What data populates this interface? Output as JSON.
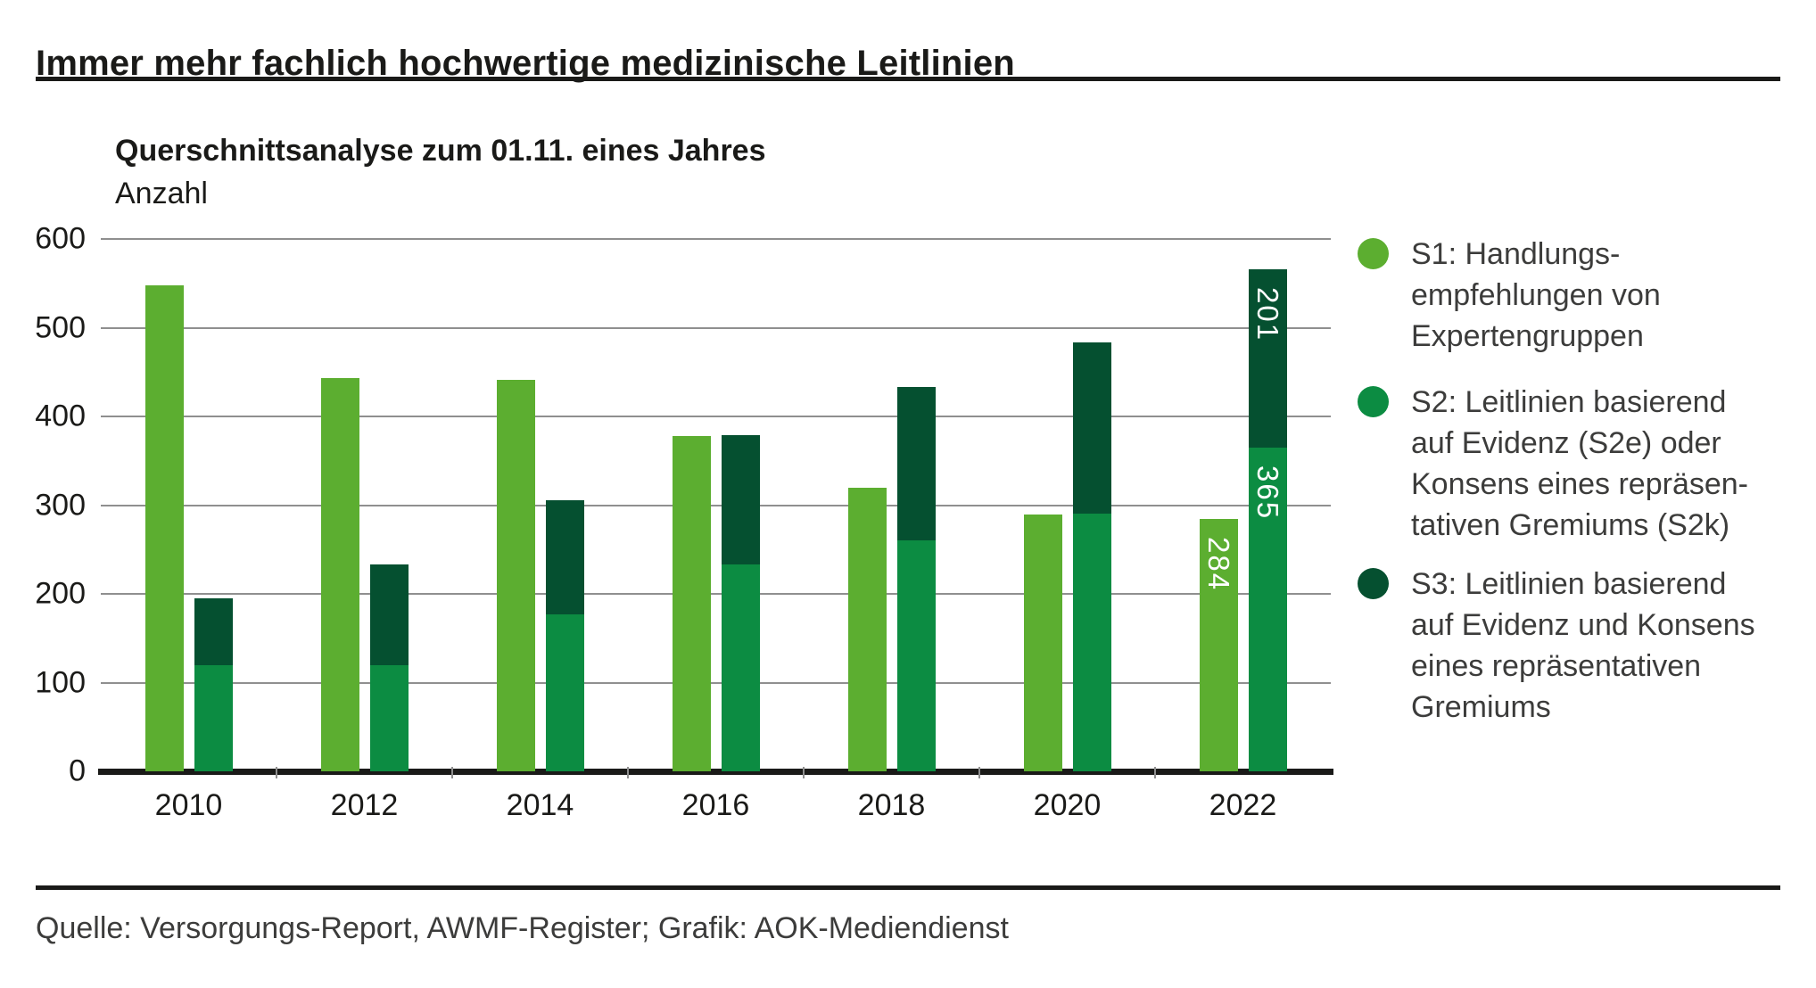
{
  "header": {
    "title": "Immer mehr fachlich hochwertige medizinische Leitlinien"
  },
  "chart_data": {
    "type": "bar",
    "title": "Querschnittsanalyse zum 01.11. eines Jahres",
    "ylabel": "Anzahl",
    "categories": [
      "2010",
      "2012",
      "2014",
      "2016",
      "2018",
      "2020",
      "2022"
    ],
    "y_ticks": [
      600,
      500,
      400,
      300,
      200,
      100,
      0
    ],
    "ylim": [
      0,
      600
    ],
    "grid": true,
    "legend_position": "right",
    "series": [
      {
        "name": "S1",
        "color": "#5cae30",
        "stack": null,
        "values": [
          548,
          443,
          441,
          378,
          320,
          289,
          284
        ],
        "value_labels": [
          null,
          null,
          null,
          null,
          null,
          null,
          "284"
        ]
      },
      {
        "name": "S2",
        "color": "#0c8c42",
        "stack": "A",
        "values": [
          120,
          120,
          177,
          233,
          260,
          290,
          365
        ],
        "value_labels": [
          null,
          null,
          null,
          null,
          null,
          null,
          "365"
        ]
      },
      {
        "name": "S3",
        "color": "#055030",
        "stack": "A",
        "values": [
          75,
          113,
          129,
          146,
          173,
          193,
          201
        ],
        "value_labels": [
          null,
          null,
          null,
          null,
          null,
          null,
          "201"
        ]
      }
    ]
  },
  "legend": {
    "items": [
      {
        "name": "S1",
        "color": "#5cae30",
        "text": "S1: Handlungs-\nempfehlungen von\nExpertengruppen"
      },
      {
        "name": "S2",
        "color": "#0c8c42",
        "text": "S2: Leitlinien basierend\nauf Evidenz (S2e) oder\nKonsens eines repräsen-\ntativen Gremiums (S2k)"
      },
      {
        "name": "S3",
        "color": "#055030",
        "text": "S3: Leitlinien basierend\nauf Evidenz und Konsens\neines repräsentativen\nGremiums"
      }
    ]
  },
  "footer": {
    "source": "Quelle: Versorgungs-Report, AWMF-Register; Grafik: AOK-Mediendienst"
  },
  "colors": {
    "s1_light_green": "#5cae30",
    "s2_medium_green": "#0c8c42",
    "s3_dark_green": "#055030",
    "text_dark": "#1a1a18",
    "text_gray": "#3c3c3b",
    "gridline_gray": "#8f8f8f"
  }
}
